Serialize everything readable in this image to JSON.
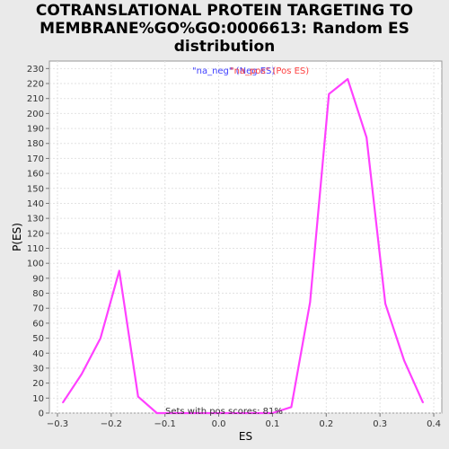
{
  "chart_data": {
    "type": "line",
    "title_lines": [
      "COTRANSLATIONAL PROTEIN TARGETING TO",
      "MEMBRANE%GO%GO:0006613: Random ES",
      "distribution"
    ],
    "xlabel": "ES",
    "ylabel": "P(ES)",
    "xlim": [
      -0.315,
      0.415
    ],
    "ylim": [
      0,
      235
    ],
    "x_ticks": [
      -0.3,
      -0.2,
      -0.1,
      0.0,
      0.1,
      0.2,
      0.3,
      0.4
    ],
    "x_tick_labels": [
      "−0.3",
      "−0.2",
      "−0.1",
      "0.0",
      "0.1",
      "0.2",
      "0.3",
      "0.4"
    ],
    "y_ticks": [
      0,
      10,
      20,
      30,
      40,
      50,
      60,
      70,
      80,
      90,
      100,
      110,
      120,
      130,
      140,
      150,
      160,
      170,
      180,
      190,
      200,
      210,
      220,
      230
    ],
    "grid": true,
    "legend": {
      "placement": "top-center",
      "entries": [
        {
          "text": "\"na_neg\" (Neg ES)",
          "color": "#4040ff"
        },
        {
          "text": "\"na_pos\" (Pos ES)",
          "color": "#ff4040"
        }
      ]
    },
    "series": [
      {
        "color": "#ff40ff",
        "x": [
          -0.29,
          -0.255,
          -0.22,
          -0.185,
          -0.15,
          -0.115,
          -0.08,
          0.1,
          0.135,
          0.17,
          0.205,
          0.24,
          0.275,
          0.31,
          0.345,
          0.38
        ],
        "y": [
          7,
          26,
          50,
          95,
          11,
          0,
          0,
          0,
          4,
          74,
          213,
          223,
          184,
          73,
          35,
          7
        ]
      }
    ],
    "annotation": "Sets with pos scores: 81%"
  }
}
